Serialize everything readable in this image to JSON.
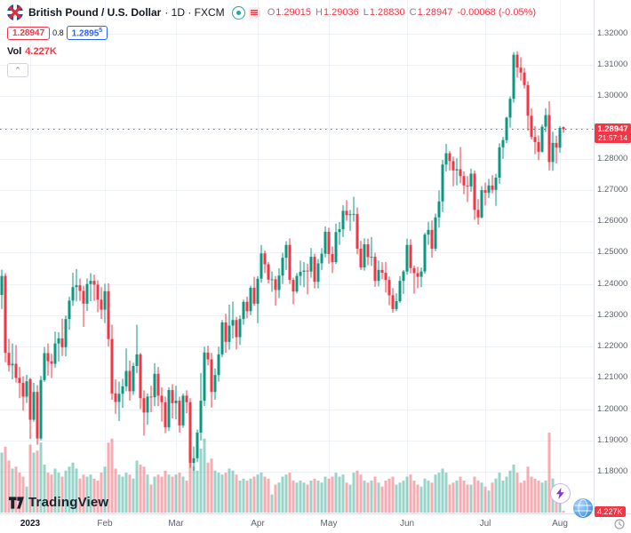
{
  "header": {
    "symbol": "British Pound / U.S. Dollar",
    "meta": "· 1D · FXCM",
    "ohlc": {
      "o_label": "O",
      "o": "1.29015",
      "h_label": "H",
      "h": "1.29036",
      "l_label": "L",
      "l": "1.28830",
      "c_label": "C",
      "c": "1.28947",
      "change": "-0.00068 (-0.05%)"
    },
    "bid": "1.28947",
    "spread": "0.8",
    "ask": "1.2895",
    "ask_sup": "5",
    "vol_label": "Vol",
    "vol_value": "4.227K",
    "collapse_glyph": "⌃",
    "icons": [
      "eye-icon",
      "menu-icon"
    ]
  },
  "price_axis": {
    "ticks": [
      "1.32000",
      "1.31000",
      "1.30000",
      "1.29000",
      "1.28000",
      "1.27000",
      "1.26000",
      "1.25000",
      "1.24000",
      "1.23000",
      "1.22000",
      "1.21000",
      "1.20000",
      "1.19000",
      "1.18000"
    ],
    "current": {
      "price": "1.28947",
      "countdown": "21:57:14"
    },
    "volume_label": "4.227K"
  },
  "time_axis": {
    "ticks": [
      {
        "label": "2023",
        "index": 8,
        "bold": true
      },
      {
        "label": "Feb",
        "index": 29
      },
      {
        "label": "Mar",
        "index": 49
      },
      {
        "label": "Apr",
        "index": 72
      },
      {
        "label": "May",
        "index": 92
      },
      {
        "label": "Jun",
        "index": 114
      },
      {
        "label": "Jul",
        "index": 136
      },
      {
        "label": "Aug",
        "index": 157
      }
    ]
  },
  "branding": {
    "logo_text": "TradingView"
  },
  "chart_data": {
    "type": "candlestick",
    "title": "British Pound / U.S. Dollar",
    "symbol": "GBP/USD",
    "timeframe": "1D",
    "exchange": "FXCM",
    "current_price": 1.28947,
    "current_volume_k": 4.227,
    "price_axis_range_visible": [
      1.1666,
      1.3308
    ],
    "date_range_visible": [
      "Dec 2022",
      "Aug 2023"
    ],
    "grid": true,
    "colors": {
      "up": "#089981",
      "down": "#F23645",
      "grid": "#eef1f6",
      "current_line": "#F23645"
    },
    "candle_fields": [
      "open",
      "high",
      "low",
      "close",
      "volume_k"
    ],
    "candles": [
      [
        1.2365,
        1.2446,
        1.232,
        1.2426,
        150
      ],
      [
        1.2426,
        1.2435,
        1.215,
        1.218,
        165
      ],
      [
        1.218,
        1.2225,
        1.212,
        1.214,
        130
      ],
      [
        1.214,
        1.221,
        1.2095,
        1.2145,
        110
      ],
      [
        1.2145,
        1.2205,
        1.2085,
        1.21,
        115
      ],
      [
        1.21,
        1.2135,
        1.2035,
        1.2084,
        100
      ],
      [
        1.2084,
        1.2105,
        1.1995,
        1.204,
        90
      ],
      [
        1.204,
        1.211,
        1.202,
        1.2089,
        65
      ],
      [
        1.2096,
        1.21,
        1.1905,
        1.1966,
        170
      ],
      [
        1.1966,
        1.2084,
        1.196,
        1.2055,
        150
      ],
      [
        1.2055,
        1.2077,
        1.1886,
        1.1906,
        155
      ],
      [
        1.1906,
        1.2106,
        1.19,
        1.2093,
        175
      ],
      [
        1.2093,
        1.2199,
        1.2087,
        1.2179,
        120
      ],
      [
        1.2179,
        1.221,
        1.2107,
        1.2153,
        100
      ],
      [
        1.2153,
        1.2177,
        1.21,
        1.2145,
        95
      ],
      [
        1.2145,
        1.2248,
        1.2132,
        1.221,
        110
      ],
      [
        1.221,
        1.2246,
        1.2152,
        1.2226,
        100
      ],
      [
        1.2226,
        1.2289,
        1.217,
        1.2198,
        90
      ],
      [
        1.2198,
        1.2299,
        1.2169,
        1.2288,
        105
      ],
      [
        1.2288,
        1.236,
        1.2254,
        1.2347,
        115
      ],
      [
        1.2347,
        1.2436,
        1.233,
        1.239,
        125
      ],
      [
        1.239,
        1.2448,
        1.2344,
        1.2396,
        110
      ],
      [
        1.2396,
        1.2418,
        1.2346,
        1.2378,
        85
      ],
      [
        1.2378,
        1.2395,
        1.2263,
        1.2337,
        95
      ],
      [
        1.2337,
        1.2418,
        1.2314,
        1.24,
        90
      ],
      [
        1.24,
        1.2435,
        1.2345,
        1.241,
        95
      ],
      [
        1.241,
        1.243,
        1.2346,
        1.2398,
        85
      ],
      [
        1.2398,
        1.2412,
        1.231,
        1.235,
        80
      ],
      [
        1.235,
        1.239,
        1.2288,
        1.2318,
        100
      ],
      [
        1.2318,
        1.2401,
        1.2275,
        1.2377,
        115
      ],
      [
        1.2377,
        1.2402,
        1.22,
        1.2224,
        175
      ],
      [
        1.2224,
        1.227,
        1.203,
        1.205,
        185
      ],
      [
        1.205,
        1.2095,
        1.1985,
        1.2023,
        110
      ],
      [
        1.2023,
        1.2088,
        1.1962,
        1.2049,
        95
      ],
      [
        1.2049,
        1.2097,
        1.2004,
        1.2073,
        90
      ],
      [
        1.2073,
        1.2194,
        1.2057,
        1.2122,
        100
      ],
      [
        1.2122,
        1.2155,
        1.2027,
        1.2057,
        95
      ],
      [
        1.2057,
        1.2148,
        1.2045,
        1.2138,
        85
      ],
      [
        1.2138,
        1.227,
        1.2115,
        1.2175,
        130
      ],
      [
        1.2175,
        1.218,
        1.2,
        1.2035,
        120
      ],
      [
        1.2035,
        1.206,
        1.1915,
        1.1989,
        115
      ],
      [
        1.1989,
        1.205,
        1.195,
        1.204,
        95
      ],
      [
        1.204,
        1.2075,
        1.199,
        1.2038,
        70
      ],
      [
        1.2038,
        1.2147,
        1.201,
        1.2113,
        90
      ],
      [
        1.2113,
        1.2135,
        1.201,
        1.2043,
        95
      ],
      [
        1.2043,
        1.207,
        1.196,
        1.2022,
        90
      ],
      [
        1.2022,
        1.204,
        1.1923,
        1.1942,
        105
      ],
      [
        1.1942,
        1.207,
        1.193,
        1.2061,
        95
      ],
      [
        1.2061,
        1.208,
        1.197,
        1.2019,
        90
      ],
      [
        1.2019,
        1.2075,
        1.1967,
        1.2027,
        95
      ],
      [
        1.2027,
        1.204,
        1.1925,
        1.1948,
        100
      ],
      [
        1.1948,
        1.205,
        1.194,
        1.2043,
        90
      ],
      [
        1.2043,
        1.206,
        1.1987,
        1.2022,
        80
      ],
      [
        1.2022,
        1.2035,
        1.1812,
        1.1828,
        175
      ],
      [
        1.1828,
        1.188,
        1.1803,
        1.1843,
        115
      ],
      [
        1.1843,
        1.1935,
        1.183,
        1.1925,
        105
      ],
      [
        1.1925,
        1.2115,
        1.19,
        1.2027,
        160
      ],
      [
        1.2027,
        1.22,
        1.201,
        1.2181,
        185
      ],
      [
        1.2181,
        1.2203,
        1.214,
        1.2159,
        125
      ],
      [
        1.2159,
        1.218,
        1.2005,
        1.2055,
        135
      ],
      [
        1.2055,
        1.213,
        1.203,
        1.2109,
        105
      ],
      [
        1.2109,
        1.22,
        1.2088,
        1.2175,
        100
      ],
      [
        1.2175,
        1.2285,
        1.2166,
        1.2277,
        95
      ],
      [
        1.2277,
        1.2305,
        1.218,
        1.2215,
        100
      ],
      [
        1.2215,
        1.2334,
        1.219,
        1.2267,
        110
      ],
      [
        1.2267,
        1.2344,
        1.2226,
        1.2285,
        105
      ],
      [
        1.2285,
        1.2295,
        1.2191,
        1.223,
        95
      ],
      [
        1.223,
        1.23,
        1.2205,
        1.2288,
        80
      ],
      [
        1.2288,
        1.235,
        1.227,
        1.2343,
        85
      ],
      [
        1.2343,
        1.236,
        1.229,
        1.2313,
        80
      ],
      [
        1.2313,
        1.2395,
        1.23,
        1.2388,
        85
      ],
      [
        1.2388,
        1.2423,
        1.233,
        1.2337,
        90
      ],
      [
        1.2337,
        1.2425,
        1.2275,
        1.2417,
        95
      ],
      [
        1.2417,
        1.2525,
        1.2404,
        1.2498,
        100
      ],
      [
        1.2498,
        1.2507,
        1.2435,
        1.2463,
        90
      ],
      [
        1.2463,
        1.247,
        1.2402,
        1.2414,
        85
      ],
      [
        1.2414,
        1.244,
        1.2375,
        1.2415,
        45
      ],
      [
        1.2415,
        1.2425,
        1.2331,
        1.2381,
        70
      ],
      [
        1.2381,
        1.245,
        1.2355,
        1.2427,
        75
      ],
      [
        1.2427,
        1.25,
        1.24,
        1.2484,
        90
      ],
      [
        1.2484,
        1.2537,
        1.2445,
        1.2525,
        95
      ],
      [
        1.2525,
        1.2546,
        1.24,
        1.2413,
        100
      ],
      [
        1.2413,
        1.242,
        1.2335,
        1.2376,
        80
      ],
      [
        1.2376,
        1.2435,
        1.237,
        1.2426,
        75
      ],
      [
        1.2426,
        1.2475,
        1.2395,
        1.2439,
        80
      ],
      [
        1.2439,
        1.247,
        1.239,
        1.2443,
        75
      ],
      [
        1.2443,
        1.2465,
        1.2367,
        1.244,
        70
      ],
      [
        1.244,
        1.2515,
        1.242,
        1.2487,
        80
      ],
      [
        1.2487,
        1.2497,
        1.2386,
        1.2407,
        85
      ],
      [
        1.2407,
        1.248,
        1.2386,
        1.2466,
        80
      ],
      [
        1.2466,
        1.2515,
        1.2445,
        1.2497,
        75
      ],
      [
        1.2497,
        1.2584,
        1.2485,
        1.2567,
        90
      ],
      [
        1.2567,
        1.258,
        1.2465,
        1.2496,
        85
      ],
      [
        1.2496,
        1.252,
        1.2435,
        1.247,
        90
      ],
      [
        1.247,
        1.2593,
        1.2464,
        1.2566,
        100
      ],
      [
        1.2566,
        1.2598,
        1.2525,
        1.2575,
        90
      ],
      [
        1.2575,
        1.2652,
        1.255,
        1.2634,
        95
      ],
      [
        1.2634,
        1.2668,
        1.2602,
        1.262,
        75
      ],
      [
        1.262,
        1.2637,
        1.257,
        1.2623,
        70
      ],
      [
        1.2623,
        1.2679,
        1.26,
        1.2624,
        100
      ],
      [
        1.2624,
        1.2645,
        1.2495,
        1.2513,
        105
      ],
      [
        1.2513,
        1.2538,
        1.2445,
        1.2453,
        95
      ],
      [
        1.2453,
        1.2546,
        1.2443,
        1.2527,
        80
      ],
      [
        1.2527,
        1.2545,
        1.246,
        1.2486,
        75
      ],
      [
        1.2486,
        1.255,
        1.2458,
        1.2487,
        80
      ],
      [
        1.2487,
        1.25,
        1.2391,
        1.241,
        90
      ],
      [
        1.241,
        1.2475,
        1.2392,
        1.2445,
        75
      ],
      [
        1.2445,
        1.247,
        1.2415,
        1.2436,
        65
      ],
      [
        1.2436,
        1.247,
        1.2373,
        1.2413,
        80
      ],
      [
        1.2413,
        1.2424,
        1.2332,
        1.2364,
        85
      ],
      [
        1.2364,
        1.2387,
        1.2308,
        1.232,
        90
      ],
      [
        1.232,
        1.237,
        1.2313,
        1.2345,
        70
      ],
      [
        1.2345,
        1.2425,
        1.234,
        1.241,
        75
      ],
      [
        1.241,
        1.2445,
        1.2368,
        1.244,
        80
      ],
      [
        1.244,
        1.2545,
        1.243,
        1.2525,
        90
      ],
      [
        1.2525,
        1.2543,
        1.2434,
        1.2451,
        95
      ],
      [
        1.2451,
        1.2459,
        1.2369,
        1.2435,
        80
      ],
      [
        1.2435,
        1.2455,
        1.2386,
        1.2423,
        70
      ],
      [
        1.2423,
        1.2453,
        1.239,
        1.244,
        65
      ],
      [
        1.244,
        1.2564,
        1.2433,
        1.2558,
        85
      ],
      [
        1.2558,
        1.2599,
        1.2525,
        1.2573,
        80
      ],
      [
        1.2573,
        1.2603,
        1.2484,
        1.2513,
        75
      ],
      [
        1.2513,
        1.2625,
        1.2505,
        1.2613,
        95
      ],
      [
        1.2613,
        1.2699,
        1.258,
        1.2664,
        100
      ],
      [
        1.2664,
        1.2797,
        1.263,
        1.2782,
        110
      ],
      [
        1.2782,
        1.2848,
        1.276,
        1.2818,
        100
      ],
      [
        1.2818,
        1.2825,
        1.2762,
        1.2793,
        70
      ],
      [
        1.2793,
        1.2807,
        1.2712,
        1.2763,
        75
      ],
      [
        1.2763,
        1.2802,
        1.2715,
        1.2767,
        80
      ],
      [
        1.2767,
        1.2838,
        1.2722,
        1.2745,
        90
      ],
      [
        1.2745,
        1.276,
        1.2687,
        1.2715,
        80
      ],
      [
        1.2715,
        1.2745,
        1.2662,
        1.2712,
        70
      ],
      [
        1.2712,
        1.2769,
        1.2695,
        1.2753,
        70
      ],
      [
        1.2753,
        1.2763,
        1.2605,
        1.2637,
        90
      ],
      [
        1.2637,
        1.2671,
        1.259,
        1.2613,
        80
      ],
      [
        1.2613,
        1.2713,
        1.261,
        1.27,
        75
      ],
      [
        1.27,
        1.2724,
        1.2651,
        1.2692,
        65
      ],
      [
        1.2692,
        1.2736,
        1.2675,
        1.2715,
        55
      ],
      [
        1.2715,
        1.2748,
        1.269,
        1.2701,
        75
      ],
      [
        1.2701,
        1.2752,
        1.265,
        1.274,
        85
      ],
      [
        1.274,
        1.285,
        1.272,
        1.2837,
        100
      ],
      [
        1.2837,
        1.287,
        1.28,
        1.286,
        80
      ],
      [
        1.286,
        1.2935,
        1.285,
        1.2932,
        90
      ],
      [
        1.2932,
        1.3,
        1.29,
        1.2992,
        105
      ],
      [
        1.2992,
        1.3141,
        1.298,
        1.3133,
        120
      ],
      [
        1.3133,
        1.3144,
        1.306,
        1.3092,
        100
      ],
      [
        1.3092,
        1.3125,
        1.305,
        1.3076,
        75
      ],
      [
        1.3076,
        1.3091,
        1.3025,
        1.3036,
        80
      ],
      [
        1.3036,
        1.3048,
        1.289,
        1.2938,
        115
      ],
      [
        1.2938,
        1.2962,
        1.2862,
        1.287,
        90
      ],
      [
        1.287,
        1.2905,
        1.2815,
        1.2854,
        85
      ],
      [
        1.2854,
        1.2875,
        1.2796,
        1.2823,
        80
      ],
      [
        1.2823,
        1.291,
        1.282,
        1.2903,
        75
      ],
      [
        1.2903,
        1.2962,
        1.2886,
        1.294,
        80
      ],
      [
        1.294,
        1.2984,
        1.2763,
        1.279,
        200
      ],
      [
        1.279,
        1.2887,
        1.2762,
        1.2851,
        85
      ],
      [
        1.2851,
        1.2874,
        1.2785,
        1.2836,
        70
      ],
      [
        1.2836,
        1.2905,
        1.282,
        1.2899,
        60
      ],
      [
        1.29015,
        1.29036,
        1.2883,
        1.28947,
        4.227
      ]
    ]
  }
}
